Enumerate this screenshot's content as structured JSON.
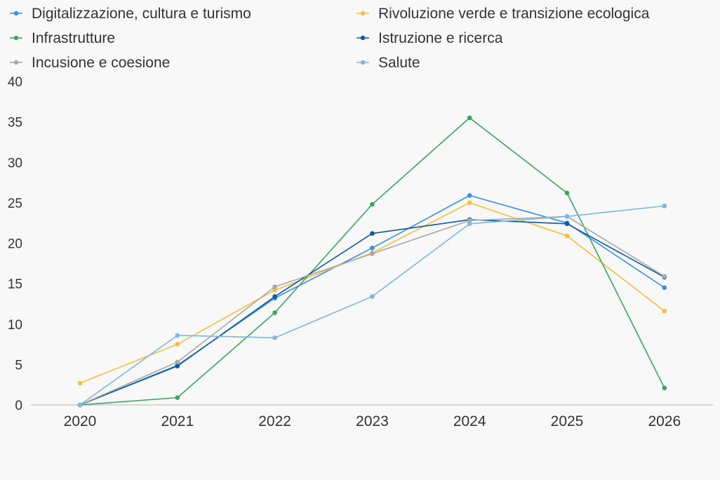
{
  "chart_data": {
    "type": "line",
    "title": "",
    "xlabel": "",
    "ylabel": "",
    "categories": [
      "2020",
      "2021",
      "2022",
      "2023",
      "2024",
      "2025",
      "2026"
    ],
    "ylim": [
      0,
      40
    ],
    "yticks": [
      0,
      5,
      10,
      15,
      20,
      25,
      30,
      35,
      40
    ],
    "grid": false,
    "legend": "top",
    "series": [
      {
        "name": "Digitalizzazione, cultura e turismo",
        "color": "#3a8ee6",
        "values": [
          0,
          4.9,
          13.2,
          19.4,
          25.9,
          22.5,
          14.5
        ]
      },
      {
        "name": "Rivoluzione verde e transizione ecologica",
        "color": "#f7bd3c",
        "values": [
          2.7,
          7.5,
          14.2,
          18.8,
          25.0,
          20.9,
          11.6
        ]
      },
      {
        "name": "Infrastrutture",
        "color": "#3aa65b",
        "values": [
          0,
          0.9,
          11.4,
          24.8,
          35.5,
          26.2,
          2.1
        ]
      },
      {
        "name": "Istruzione e ricerca",
        "color": "#0d5aa0",
        "values": [
          0,
          4.8,
          13.4,
          21.2,
          22.9,
          22.4,
          15.8
        ]
      },
      {
        "name": "Incusione e coesione",
        "color": "#a8a8a8",
        "values": [
          0,
          5.3,
          14.6,
          18.7,
          22.8,
          23.3,
          15.9
        ]
      },
      {
        "name": "Salute",
        "color": "#7cb8e0",
        "values": [
          0,
          8.6,
          8.3,
          13.4,
          22.4,
          23.3,
          24.6
        ]
      }
    ]
  }
}
